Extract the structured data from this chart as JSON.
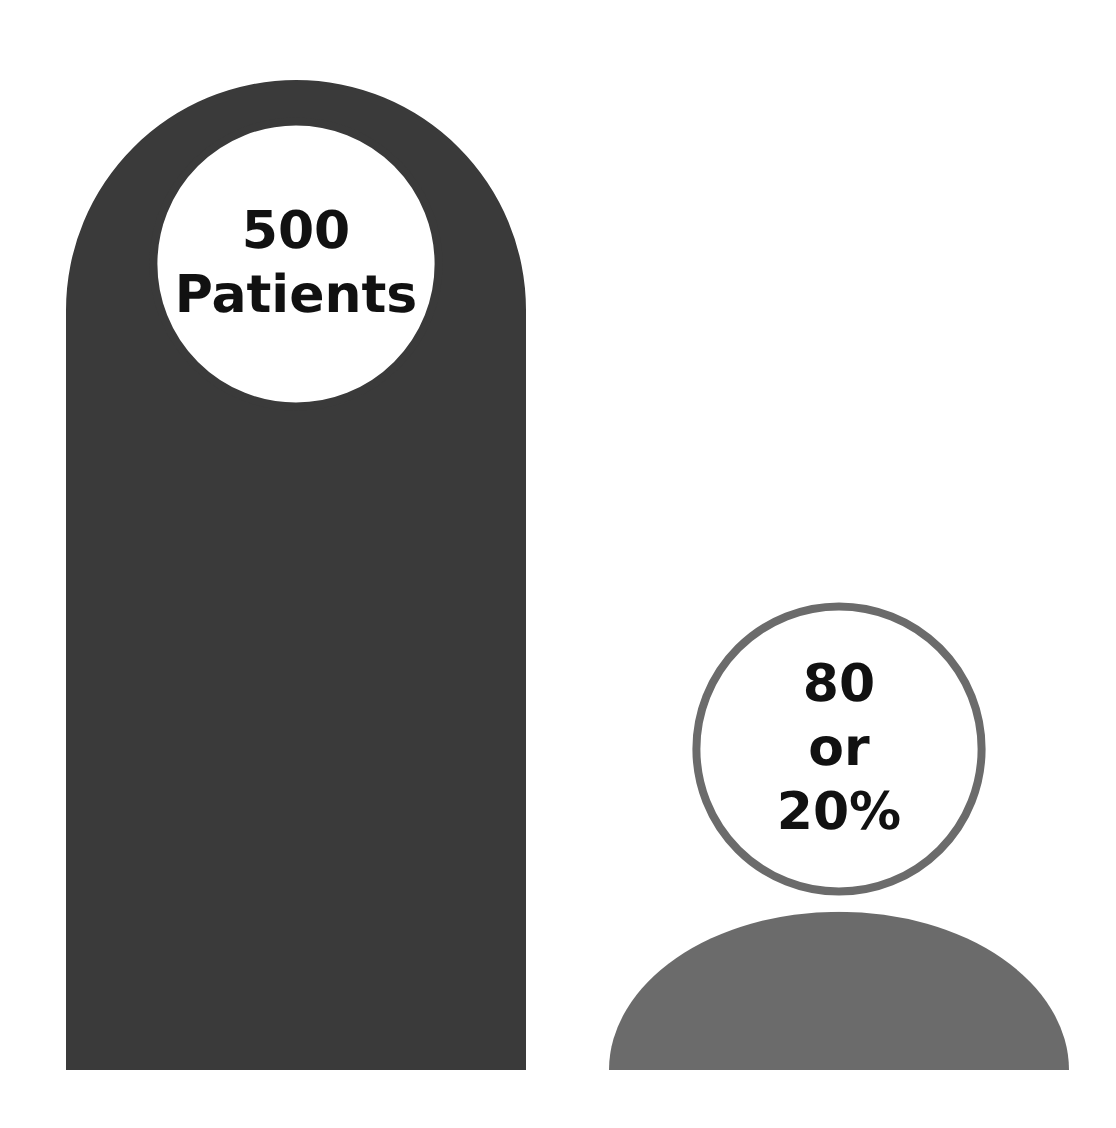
{
  "chart_data": {
    "type": "bar",
    "categories": [
      null,
      null
    ],
    "values": [
      500,
      80
    ],
    "colors": [
      "#3a3a3a",
      "#6b6b6b"
    ],
    "value_labels": [
      "500\nPatients",
      "80\nor\n20%"
    ]
  }
}
